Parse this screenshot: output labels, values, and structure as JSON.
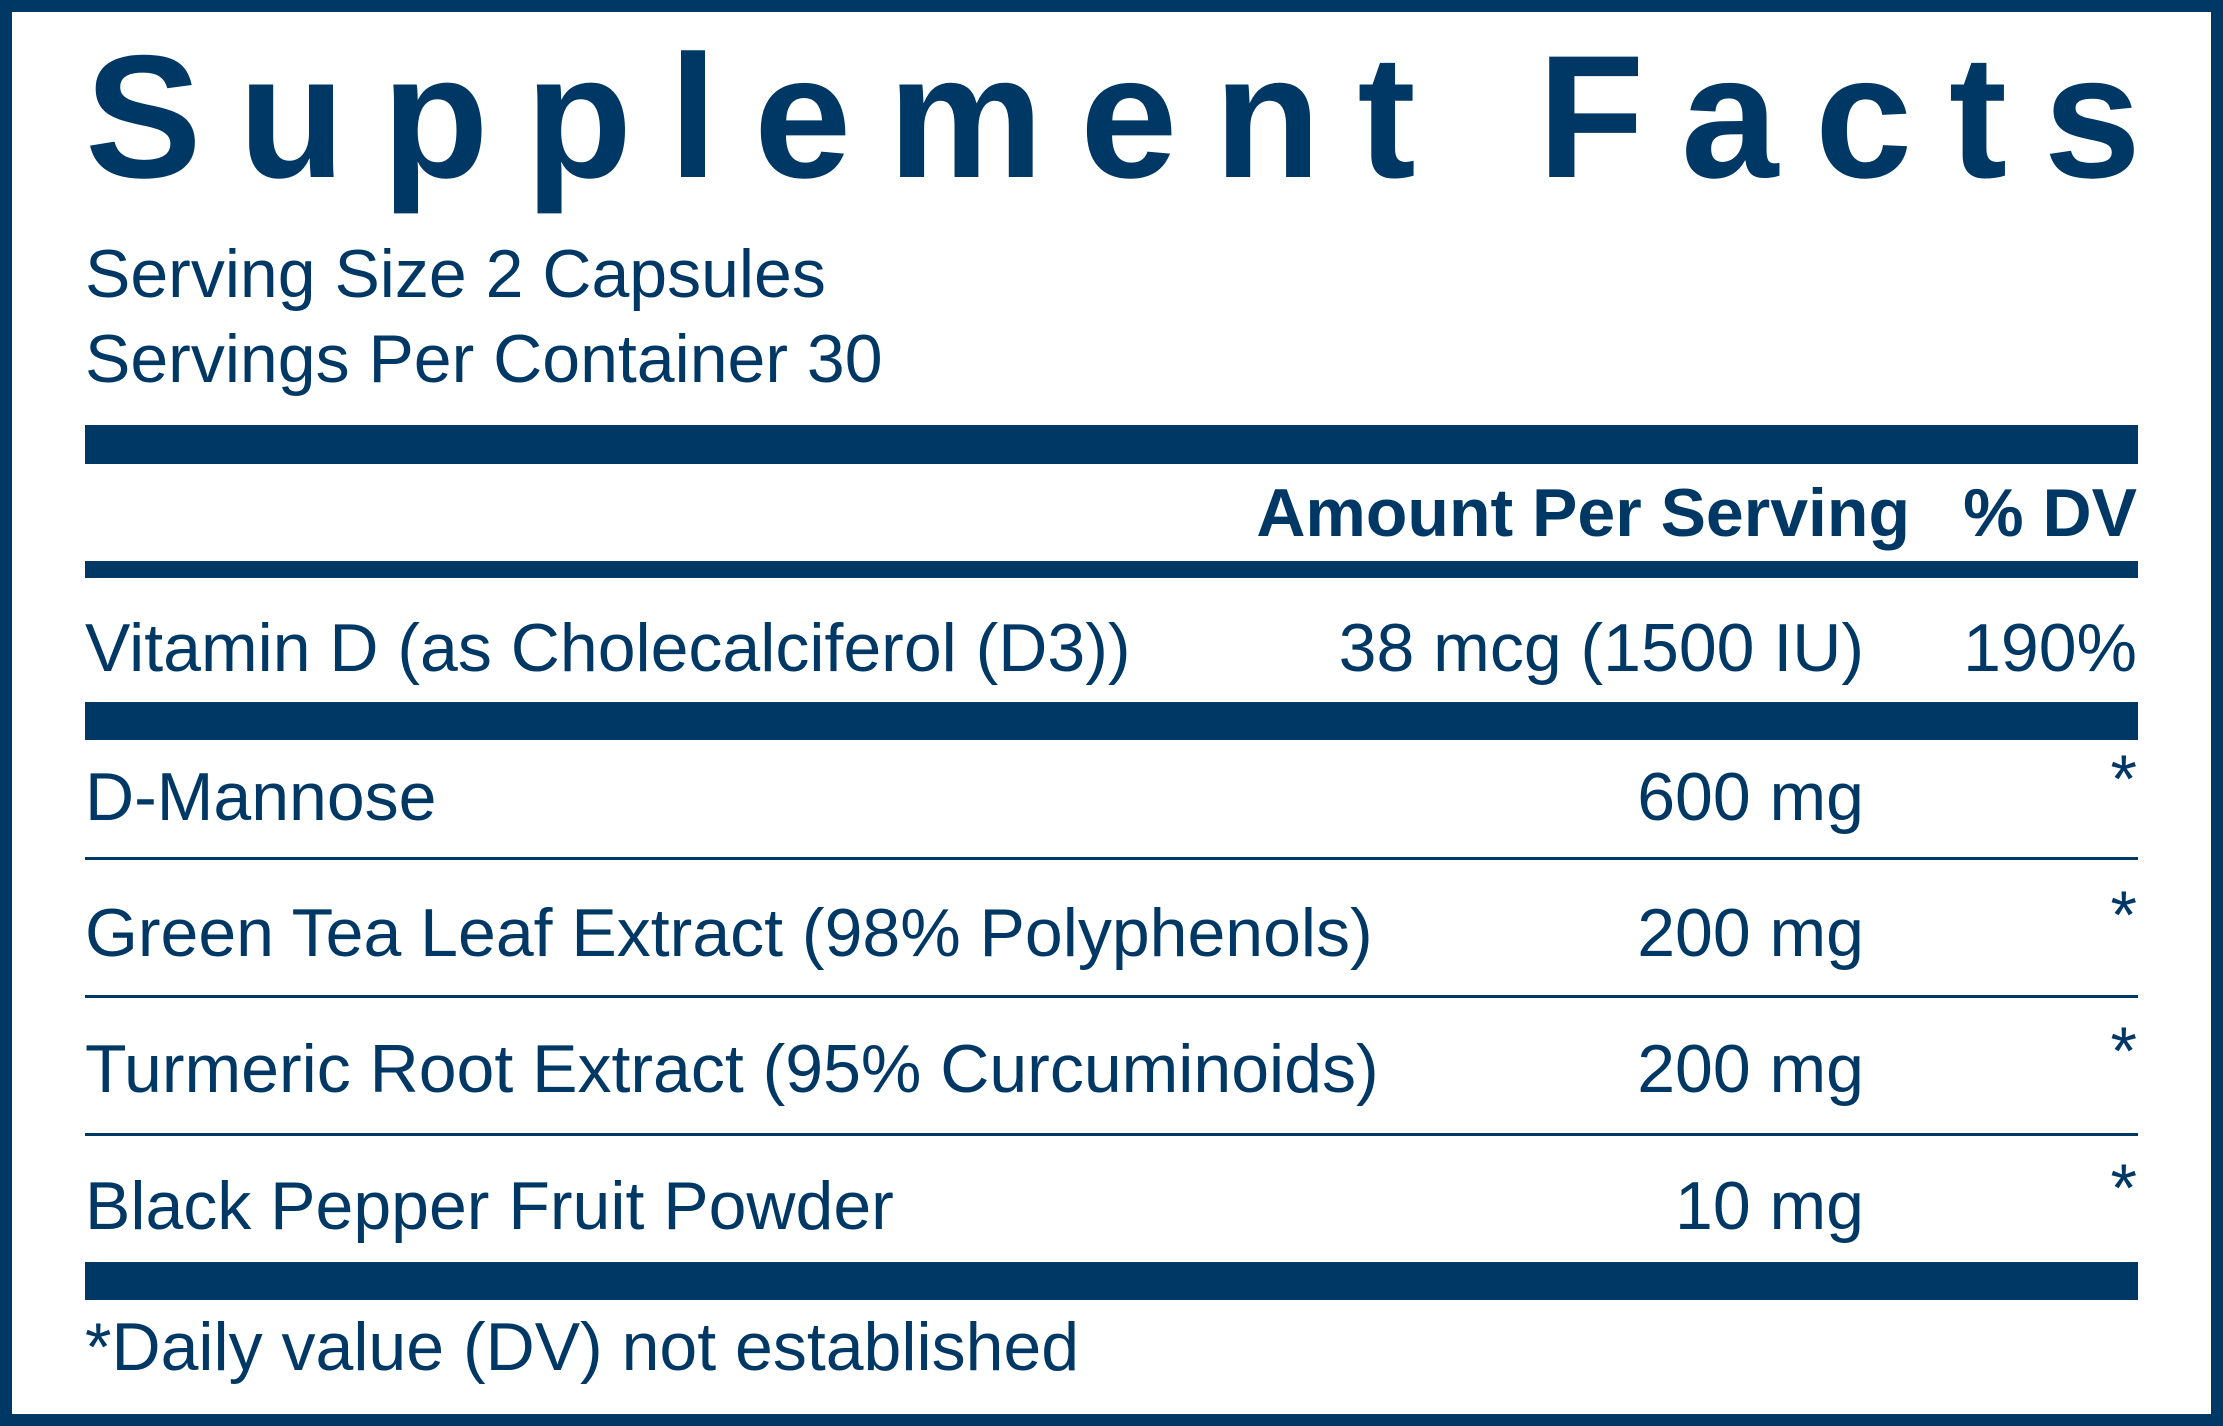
{
  "title": "Supplement Facts",
  "serving_size": "Serving Size 2 Capsules",
  "servings_per_container": "Servings Per Container 30",
  "header": {
    "amount": "Amount Per Serving",
    "dv": "% DV"
  },
  "rows": [
    {
      "name": "Vitamin D (as Cholecalciferol (D3))",
      "amount": "38 mcg (1500 IU)",
      "dv": "190%"
    },
    {
      "name": "D-Mannose",
      "amount": "600 mg",
      "dv": "*"
    },
    {
      "name": "Green Tea Leaf Extract (98% Polyphenols)",
      "amount": "200 mg",
      "dv": "*"
    },
    {
      "name": "Turmeric Root Extract (95% Curcuminoids)",
      "amount": "200 mg",
      "dv": "*"
    },
    {
      "name": "Black Pepper Fruit Powder",
      "amount": "10 mg",
      "dv": "*"
    }
  ],
  "footnote": "*Daily value (DV) not established"
}
